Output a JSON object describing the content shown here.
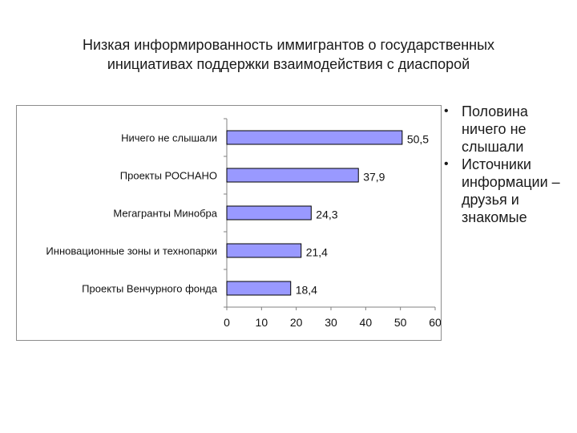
{
  "slide": {
    "title_line1": "Низкая информированность иммигрантов о государственных",
    "title_line2": "инициативах поддержки взаимодействия с диаспорой"
  },
  "bullets": [
    {
      "text": "Половина ничего не слышали"
    },
    {
      "text": "Источники информации – друзья и знакомые"
    }
  ],
  "chart_data": {
    "type": "bar",
    "orientation": "horizontal",
    "categories": [
      "Ничего не слышали",
      "Проекты РОСНАНО",
      "Мегагранты Минобра",
      "Инновационные зоны и технопарки",
      "Проекты Венчурного фонда"
    ],
    "values": [
      50.5,
      37.9,
      24.3,
      21.4,
      18.4
    ],
    "value_labels": [
      "50,5",
      "37,9",
      "24,3",
      "21,4",
      "18,4"
    ],
    "xlim": [
      0,
      60
    ],
    "xticks": [
      0,
      10,
      20,
      30,
      40,
      50,
      60
    ],
    "grid": false,
    "colors": {
      "bar_fill": "#9999ff",
      "bar_stroke": "#000000",
      "axis": "#808080"
    }
  }
}
